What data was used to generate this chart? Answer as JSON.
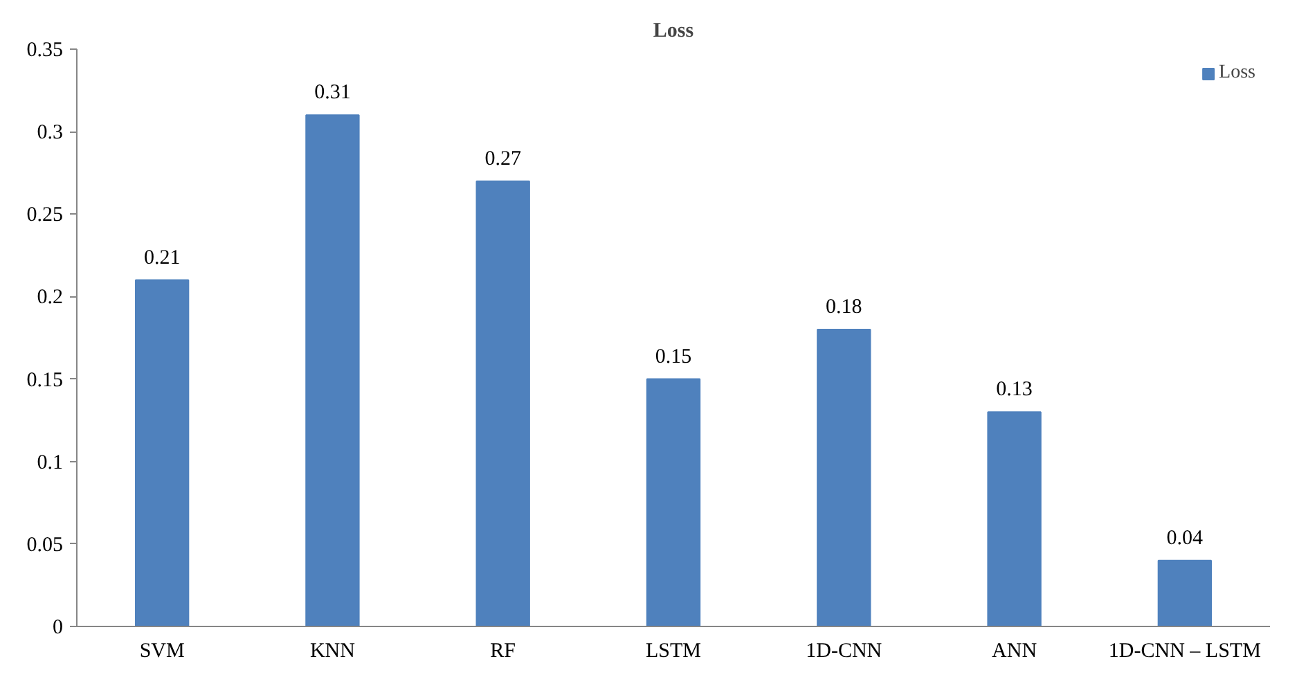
{
  "chart_data": {
    "type": "bar",
    "title": "Loss",
    "categories": [
      "SVM",
      "KNN",
      "RF",
      "LSTM",
      "1D-CNN",
      "ANN",
      "1D-CNN – LSTM"
    ],
    "series": [
      {
        "name": "Loss",
        "color": "#4f81bd",
        "values": [
          0.21,
          0.31,
          0.27,
          0.15,
          0.18,
          0.13,
          0.04
        ]
      }
    ],
    "ylim": [
      0,
      0.35
    ],
    "yticks": [
      0,
      0.05,
      0.1,
      0.15,
      0.2,
      0.25,
      0.3,
      0.35
    ],
    "grid": false,
    "legend": "top right",
    "data_labels": true
  }
}
